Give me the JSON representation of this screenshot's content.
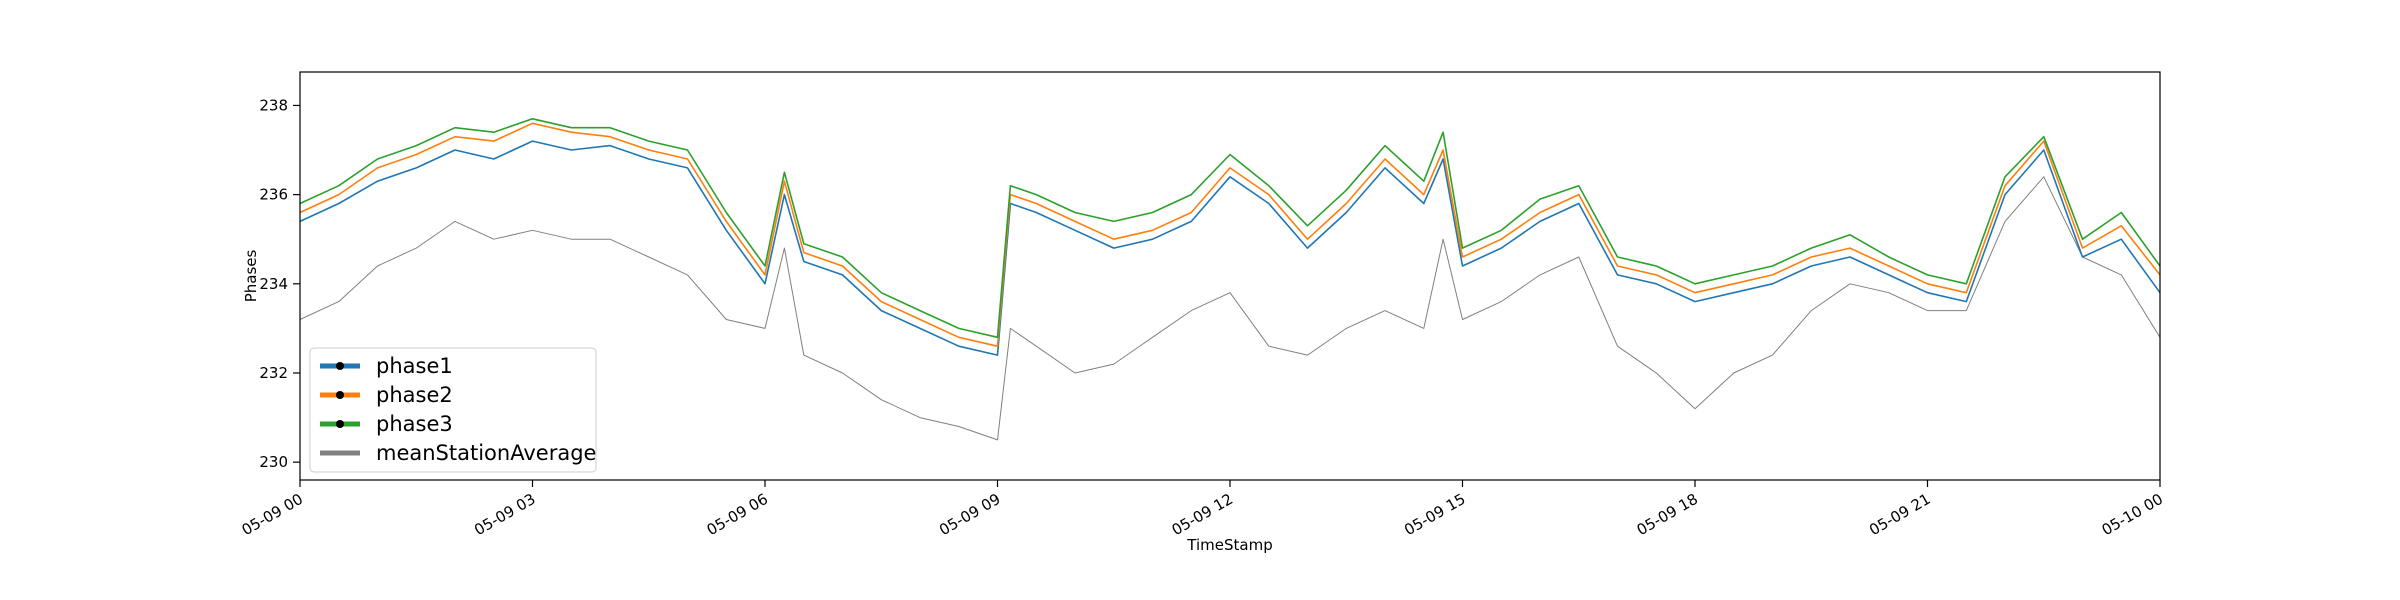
{
  "chart_data": {
    "type": "line",
    "title": "",
    "xlabel": "TimeStamp",
    "ylabel": "Phases",
    "xlim": [
      "05-09 00",
      "05-10 00"
    ],
    "ylim": [
      229.6,
      238.75
    ],
    "grid": false,
    "legend_position": "lower-left",
    "x_ticks": [
      "05-09 00",
      "05-09 03",
      "05-09 06",
      "05-09 09",
      "05-09 12",
      "05-09 15",
      "05-09 18",
      "05-09 21",
      "05-10 00"
    ],
    "y_ticks": [
      230,
      232,
      234,
      236,
      238
    ],
    "x": [
      "05-09 00:00",
      "05-09 00:30",
      "05-09 01:00",
      "05-09 01:30",
      "05-09 02:00",
      "05-09 02:30",
      "05-09 03:00",
      "05-09 03:30",
      "05-09 04:00",
      "05-09 04:30",
      "05-09 05:00",
      "05-09 05:30",
      "05-09 06:00",
      "05-09 06:15",
      "05-09 06:30",
      "05-09 07:00",
      "05-09 07:30",
      "05-09 08:00",
      "05-09 08:30",
      "05-09 09:00",
      "05-09 09:10",
      "05-09 09:30",
      "05-09 10:00",
      "05-09 10:30",
      "05-09 11:00",
      "05-09 11:30",
      "05-09 12:00",
      "05-09 12:30",
      "05-09 13:00",
      "05-09 13:30",
      "05-09 14:00",
      "05-09 14:30",
      "05-09 14:45",
      "05-09 15:00",
      "05-09 15:30",
      "05-09 16:00",
      "05-09 16:30",
      "05-09 17:00",
      "05-09 17:30",
      "05-09 18:00",
      "05-09 18:30",
      "05-09 19:00",
      "05-09 19:30",
      "05-09 20:00",
      "05-09 20:30",
      "05-09 21:00",
      "05-09 21:30",
      "05-09 22:00",
      "05-09 22:30",
      "05-09 23:00",
      "05-09 23:30",
      "05-10 00:00"
    ],
    "series": [
      {
        "name": "phase1",
        "color": "#1f77b4",
        "values": [
          235.4,
          235.8,
          236.3,
          236.6,
          237.0,
          236.8,
          237.2,
          237.0,
          237.1,
          236.8,
          236.6,
          235.2,
          234.0,
          236.0,
          234.5,
          234.2,
          233.4,
          233.0,
          232.6,
          232.4,
          235.8,
          235.6,
          235.2,
          234.8,
          235.0,
          235.4,
          236.4,
          235.8,
          234.8,
          235.6,
          236.6,
          235.8,
          236.8,
          234.4,
          234.8,
          235.4,
          235.8,
          234.2,
          234.0,
          233.6,
          233.8,
          234.0,
          234.4,
          234.6,
          234.2,
          233.8,
          233.6,
          236.0,
          237.0,
          234.6,
          235.0,
          233.8
        ]
      },
      {
        "name": "phase2",
        "color": "#ff7f0e",
        "values": [
          235.6,
          236.0,
          236.6,
          236.9,
          237.3,
          237.2,
          237.6,
          237.4,
          237.3,
          237.0,
          236.8,
          235.4,
          234.2,
          236.3,
          234.7,
          234.4,
          233.6,
          233.2,
          232.8,
          232.6,
          236.0,
          235.8,
          235.4,
          235.0,
          235.2,
          235.6,
          236.6,
          236.0,
          235.0,
          235.8,
          236.8,
          236.0,
          237.0,
          234.6,
          235.0,
          235.6,
          236.0,
          234.4,
          234.2,
          233.8,
          234.0,
          234.2,
          234.6,
          234.8,
          234.4,
          234.0,
          233.8,
          236.2,
          237.2,
          234.8,
          235.3,
          234.2
        ]
      },
      {
        "name": "phase3",
        "color": "#2ca02c",
        "values": [
          235.8,
          236.2,
          236.8,
          237.1,
          237.5,
          237.4,
          237.7,
          237.5,
          237.5,
          237.2,
          237.0,
          235.6,
          234.4,
          236.5,
          234.9,
          234.6,
          233.8,
          233.4,
          233.0,
          232.8,
          236.2,
          236.0,
          235.6,
          235.4,
          235.6,
          236.0,
          236.9,
          236.2,
          235.3,
          236.1,
          237.1,
          236.3,
          237.4,
          234.8,
          235.2,
          235.9,
          236.2,
          234.6,
          234.4,
          234.0,
          234.2,
          234.4,
          234.8,
          235.1,
          234.6,
          234.2,
          234.0,
          236.4,
          237.3,
          235.0,
          235.6,
          234.4
        ]
      },
      {
        "name": "meanStationAverage",
        "color": "#808080",
        "values": [
          233.2,
          233.6,
          234.4,
          234.8,
          235.4,
          235.0,
          235.2,
          235.0,
          235.0,
          234.6,
          234.2,
          233.2,
          233.0,
          234.8,
          232.4,
          232.0,
          231.4,
          231.0,
          230.8,
          230.5,
          233.0,
          232.6,
          232.0,
          232.2,
          232.8,
          233.4,
          233.8,
          232.6,
          232.4,
          233.0,
          233.4,
          233.0,
          235.0,
          233.2,
          233.6,
          234.2,
          234.6,
          232.6,
          232.0,
          231.2,
          232.0,
          232.4,
          233.4,
          234.0,
          233.8,
          233.4,
          233.4,
          235.4,
          236.4,
          234.6,
          234.2,
          232.8
        ]
      }
    ],
    "legend": [
      "phase1",
      "phase2",
      "phase3",
      "meanStationAverage"
    ]
  }
}
